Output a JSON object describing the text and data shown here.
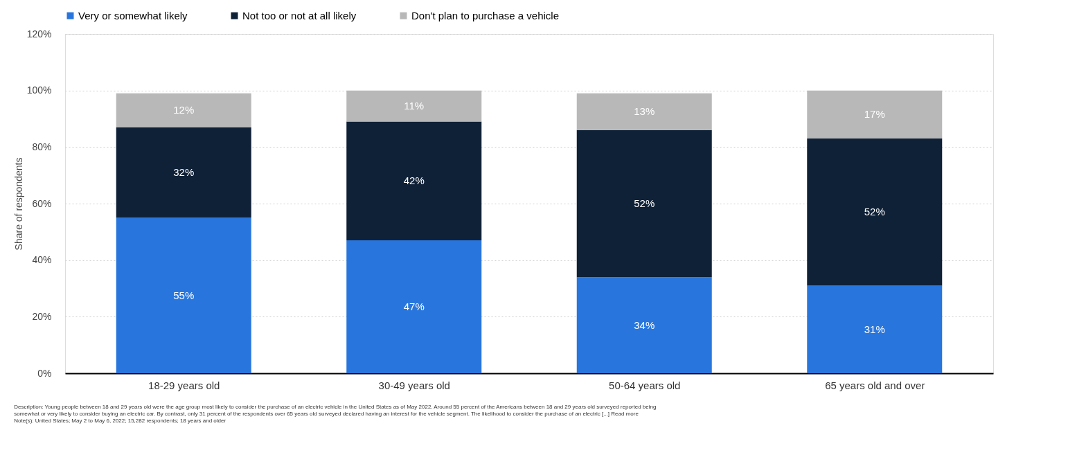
{
  "chart_data": {
    "type": "bar",
    "stacked": true,
    "ylabel": "Share of respondents",
    "categories": [
      "18-29 years old",
      "30-49 years old",
      "50-64 years old",
      "65 years old and over"
    ],
    "series": [
      {
        "name": "Very or somewhat likely",
        "color": "#2876dd",
        "values": [
          55,
          47,
          34,
          31
        ],
        "value_labels": [
          "55%",
          "47%",
          "34%",
          "31%"
        ]
      },
      {
        "name": "Not too or not at all likely",
        "color": "#0f2137",
        "values": [
          32,
          42,
          52,
          52
        ],
        "value_labels": [
          "32%",
          "42%",
          "52%",
          "52%"
        ]
      },
      {
        "name": "Don't plan to purchase a vehicle",
        "color": "#b8b8b8",
        "values": [
          12,
          11,
          13,
          17
        ],
        "value_labels": [
          "12%",
          "11%",
          "13%",
          "17%"
        ]
      }
    ],
    "ylim": [
      0,
      120
    ],
    "yticks": [
      {
        "value": 0,
        "label": "0%"
      },
      {
        "value": 20,
        "label": "20%"
      },
      {
        "value": 40,
        "label": "40%"
      },
      {
        "value": 60,
        "label": "60%"
      },
      {
        "value": 80,
        "label": "80%"
      },
      {
        "value": 100,
        "label": "100%"
      },
      {
        "value": 120,
        "label": "120%"
      }
    ],
    "grid": "y",
    "legend": "top",
    "annotations": [
      "Description: Young people between 18 and 29 years old were the age group most likely to consider the purchase of an electric vehicle in the United States as of May 2022. Around 55 percent of the Americans between 18 and 29 years old surveyed reported being",
      "somewhat or very likely to consider buying an electric car. By contrast, only 31 percent of the respondents over 65 years old surveyed declared having an interest for the vehicle segment. The likelihood to consider the purchase of an electric [...] Read more",
      "Note(s): United States; May 2 to May 6, 2022; 15,282 respondents; 18 years and older"
    ]
  }
}
